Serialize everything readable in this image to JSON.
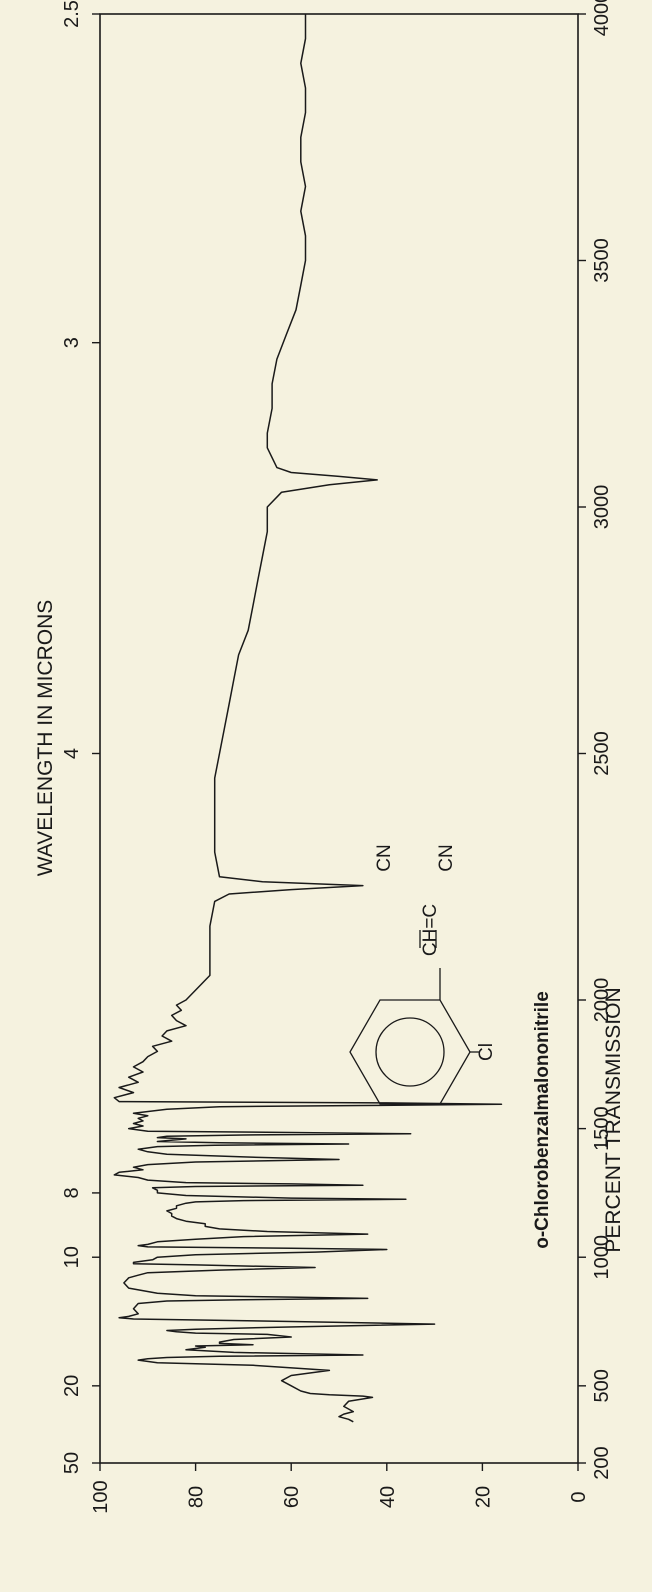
{
  "chart_data": {
    "type": "line",
    "title": "",
    "compound_name": "o-Chlorobenzalmalononitrile",
    "formula_labels": {
      "cn_top": "CN",
      "cn_bottom": "CN",
      "ch_eq_c": "CH=C",
      "cl": "Cl"
    },
    "xlabel_top": "WAVELENGTH IN MICRONS",
    "ylabel": "PERCENT TRANSMISSION",
    "top_ticks": [
      {
        "label": "2.5",
        "cm": 4000
      },
      {
        "label": "3",
        "cm": 3333.3
      },
      {
        "label": "4",
        "cm": 2500
      },
      {
        "label": "8",
        "cm": 1250
      },
      {
        "label": "10",
        "cm": 1000
      },
      {
        "label": "20",
        "cm": 500
      },
      {
        "label": "50",
        "cm": 200
      }
    ],
    "bottom_ticks": [
      {
        "label": "4000",
        "cm": 4000
      },
      {
        "label": "3500",
        "cm": 3500
      },
      {
        "label": "3000",
        "cm": 3000
      },
      {
        "label": "2500",
        "cm": 2500
      },
      {
        "label": "2000",
        "cm": 2000
      },
      {
        "label": "1500",
        "cm": 1500
      },
      {
        "label": "1000",
        "cm": 1000
      },
      {
        "label": "500",
        "cm": 500
      },
      {
        "label": "200",
        "cm": 200
      }
    ],
    "y_ticks": [
      {
        "label": "0",
        "value": 0
      },
      {
        "label": "20",
        "value": 20
      },
      {
        "label": "40",
        "value": 40
      },
      {
        "label": "60",
        "value": 60
      },
      {
        "label": "80",
        "value": 80
      },
      {
        "label": "100",
        "value": 100
      }
    ],
    "ylim": [
      0,
      100
    ],
    "grid": false,
    "series": [
      {
        "x": [
          4000,
          3950,
          3900,
          3850,
          3800,
          3750,
          3700,
          3650,
          3600,
          3550,
          3500,
          3450,
          3400,
          3350,
          3300,
          3250,
          3200,
          3150,
          3120,
          3100,
          3080,
          3070,
          3062,
          3055,
          3045,
          3030,
          3000,
          2950,
          2900,
          2850,
          2800,
          2750,
          2700,
          2650,
          2600,
          2550,
          2500,
          2450,
          2400,
          2350,
          2300,
          2250,
          2240,
          2232,
          2224,
          2215,
          2200,
          2150,
          2100,
          2050,
          2000,
          1980,
          1960,
          1940,
          1920,
          1900,
          1880,
          1860,
          1840,
          1820,
          1800,
          1780,
          1760,
          1740,
          1720,
          1700,
          1680,
          1660,
          1640,
          1620,
          1605,
          1600,
          1595,
          1590,
          1585,
          1575,
          1560,
          1550,
          1540,
          1530,
          1520,
          1510,
          1500,
          1490,
          1485,
          1480,
          1475,
          1470,
          1465,
          1460,
          1450,
          1445,
          1440,
          1435,
          1430,
          1420,
          1410,
          1400,
          1390,
          1380,
          1370,
          1360,
          1350,
          1340,
          1330,
          1320,
          1310,
          1300,
          1290,
          1285,
          1280,
          1275,
          1270,
          1260,
          1250,
          1240,
          1230,
          1225,
          1220,
          1215,
          1210,
          1200,
          1190,
          1180,
          1170,
          1160,
          1150,
          1140,
          1130,
          1120,
          1110,
          1100,
          1090,
          1080,
          1070,
          1060,
          1050,
          1045,
          1040,
          1035,
          1030,
          1020,
          1010,
          1000,
          990,
          980,
          975,
          970,
          960,
          950,
          940,
          930,
          920,
          900,
          880,
          860,
          850,
          845,
          840,
          835,
          830,
          820,
          800,
          780,
          770,
          765,
          760,
          750,
          740,
          730,
          720,
          715,
          710,
          705,
          700,
          690,
          680,
          670,
          665,
          660,
          655,
          650,
          640,
          630,
          620,
          615,
          610,
          605,
          600,
          590,
          580,
          560,
          540,
          520,
          500,
          480,
          470,
          465,
          460,
          455,
          440,
          420,
          400,
          390,
          380,
          370,
          360
        ],
        "y": [
          57,
          57,
          58,
          57,
          57,
          58,
          58,
          57,
          58,
          57,
          57,
          58,
          59,
          61,
          63,
          64,
          64,
          65,
          65,
          64,
          63,
          60,
          50,
          42,
          52,
          62,
          65,
          65,
          66,
          67,
          68,
          69,
          71,
          72,
          73,
          74,
          75,
          76,
          76,
          76,
          76,
          75,
          66,
          45,
          60,
          73,
          76,
          77,
          77,
          77,
          82,
          84,
          83,
          85,
          84,
          82,
          86,
          87,
          85,
          89,
          88,
          90,
          91,
          93,
          91,
          94,
          92,
          96,
          93,
          97,
          96,
          40,
          16,
          45,
          75,
          86,
          93,
          90,
          92,
          91,
          93,
          91,
          94,
          90,
          60,
          35,
          70,
          86,
          88,
          82,
          88,
          75,
          48,
          76,
          88,
          92,
          90,
          86,
          70,
          50,
          80,
          90,
          93,
          91,
          96,
          97,
          92,
          90,
          82,
          60,
          45,
          80,
          89,
          88,
          88,
          82,
          60,
          36,
          70,
          80,
          82,
          84,
          84,
          86,
          85,
          85,
          84,
          82,
          78,
          78,
          75,
          65,
          44,
          70,
          80,
          88,
          90,
          92,
          90,
          60,
          40,
          55,
          80,
          88,
          89,
          93,
          93,
          80,
          55,
          75,
          90,
          92,
          94,
          95,
          94,
          88,
          80,
          60,
          44,
          70,
          86,
          92,
          93,
          92,
          94,
          96,
          93,
          60,
          30,
          58,
          80,
          86,
          84,
          80,
          65,
          60,
          72,
          75,
          75,
          68,
          80,
          78,
          82,
          72,
          45,
          75,
          86,
          90,
          92,
          88,
          68,
          52,
          60,
          62,
          60,
          58,
          56,
          52,
          45,
          43,
          48,
          49,
          47,
          49,
          50,
          48,
          47
        ],
        "name": ""
      }
    ]
  }
}
